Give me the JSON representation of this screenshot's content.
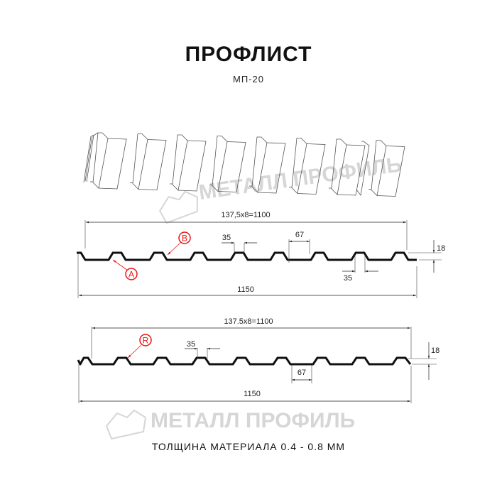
{
  "header": {
    "title": "ПРОФЛИСТ",
    "subtitle": "МП-20"
  },
  "watermark": {
    "text": "МЕТАЛЛ ПРОФИЛЬ"
  },
  "profile_a": {
    "pitch_label": "137,5x8=1100",
    "width_label": "1150",
    "crest_label": "35",
    "bottom_label": "35",
    "gap_label": "67",
    "height_label": "18",
    "marker_a": "A",
    "marker_b": "B"
  },
  "profile_r": {
    "pitch_label": "137.5x8=1100",
    "width_label": "1150",
    "crest_label": "35",
    "gap_label": "67",
    "height_label": "18",
    "marker_r": "R"
  },
  "footer": {
    "thickness": "ТОЛЩИНА МАТЕРИАЛА 0.4 - 0.8 ММ"
  },
  "colors": {
    "marker": "#e11111",
    "line": "#111111",
    "watermark": "#d6d6d6"
  }
}
